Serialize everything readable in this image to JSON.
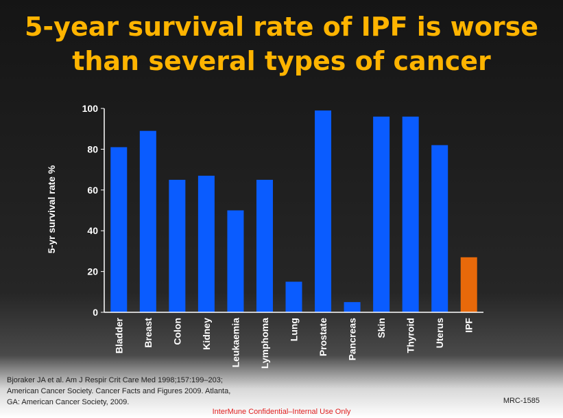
{
  "slide": {
    "title_line1": "5-year survival rate of IPF is worse",
    "title_line2": "than several types of cancer",
    "references": [
      "Bjoraker JA et al. Am J Respir Crit Care Med 1998;157:199–203;",
      "American Cancer Society. Cancer Facts and Figures 2009. Atlanta,",
      "GA: American Cancer Society, 2009."
    ],
    "doc_id": "MRC-1585",
    "confidential": "InterMune Confidential–Internal Use Only"
  },
  "colors": {
    "title": "#ffb400",
    "bar": "#0a5cff",
    "highlight": "#e8690a"
  },
  "chart_data": {
    "type": "bar",
    "title": "",
    "xlabel": "",
    "ylabel": "5-yr survival rate %",
    "ylim": [
      0,
      100
    ],
    "yticks": [
      0,
      20,
      40,
      60,
      80,
      100
    ],
    "categories": [
      "Bladder",
      "Breast",
      "Colon",
      "Kidney",
      "Leukaemia",
      "Lymphoma",
      "Lung",
      "Prostate",
      "Pancreas",
      "Skin",
      "Thyroid",
      "Uterus",
      "IPF"
    ],
    "values": [
      81,
      89,
      65,
      67,
      50,
      65,
      15,
      99,
      5,
      96,
      96,
      82,
      27
    ],
    "highlight_category": "IPF",
    "grid": false,
    "legend": "none"
  }
}
